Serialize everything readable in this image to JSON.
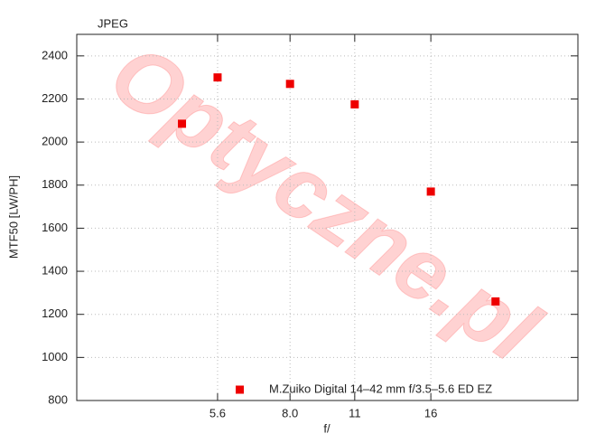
{
  "chart_data": {
    "type": "scatter",
    "title": "JPEG",
    "watermark": "Optyczne.pl",
    "xlabel": "f/",
    "ylabel": "MTF50 [LW/PH]",
    "xscale": "log",
    "xlim": [
      2.8,
      33
    ],
    "ylim": [
      800,
      2500
    ],
    "xticks": [
      5.6,
      {
        "value": 8,
        "label": "8.0"
      },
      11,
      16
    ],
    "yticks": [
      800,
      1000,
      1200,
      1400,
      1600,
      1800,
      2000,
      2200,
      2400
    ],
    "grid": true,
    "legend": "bottom",
    "series": [
      {
        "name": "M.Zuiko Digital 14–42 mm f/3.5–5.6 ED EZ",
        "color": "#ee0000",
        "x": [
          4.7,
          5.6,
          8,
          11,
          16,
          22
        ],
        "values": [
          2085,
          2300,
          2270,
          2175,
          1770,
          1260
        ]
      }
    ]
  }
}
